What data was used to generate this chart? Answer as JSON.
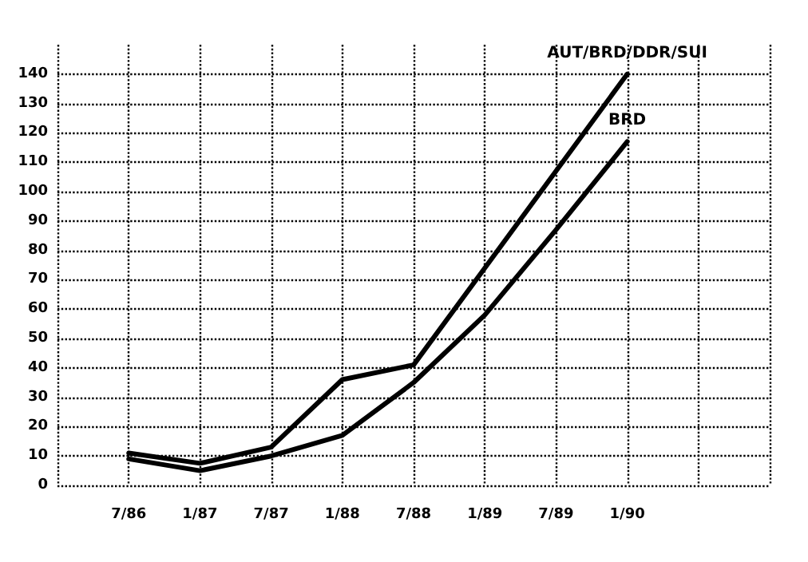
{
  "chart_data": {
    "type": "line",
    "categories": [
      null,
      "7/86",
      "1/87",
      "7/87",
      "1/88",
      "7/88",
      "1/89",
      "7/89",
      "1/90",
      null,
      null
    ],
    "series": [
      {
        "name": "AUT/BRD/DDR/SUI",
        "color": "#000000",
        "values": [
          null,
          11,
          7.5,
          13,
          36,
          41,
          74,
          107,
          140,
          null,
          null
        ]
      },
      {
        "name": "BRD",
        "color": "#000000",
        "values": [
          null,
          9,
          5,
          10,
          17,
          35,
          58,
          87,
          117,
          null,
          null
        ]
      }
    ],
    "ylim": [
      0,
      150
    ],
    "yticks": [
      0,
      10,
      20,
      30,
      40,
      50,
      60,
      70,
      80,
      90,
      100,
      110,
      120,
      130,
      140
    ],
    "grid": true,
    "legend": false,
    "marker": "none",
    "line_style": "solid"
  }
}
